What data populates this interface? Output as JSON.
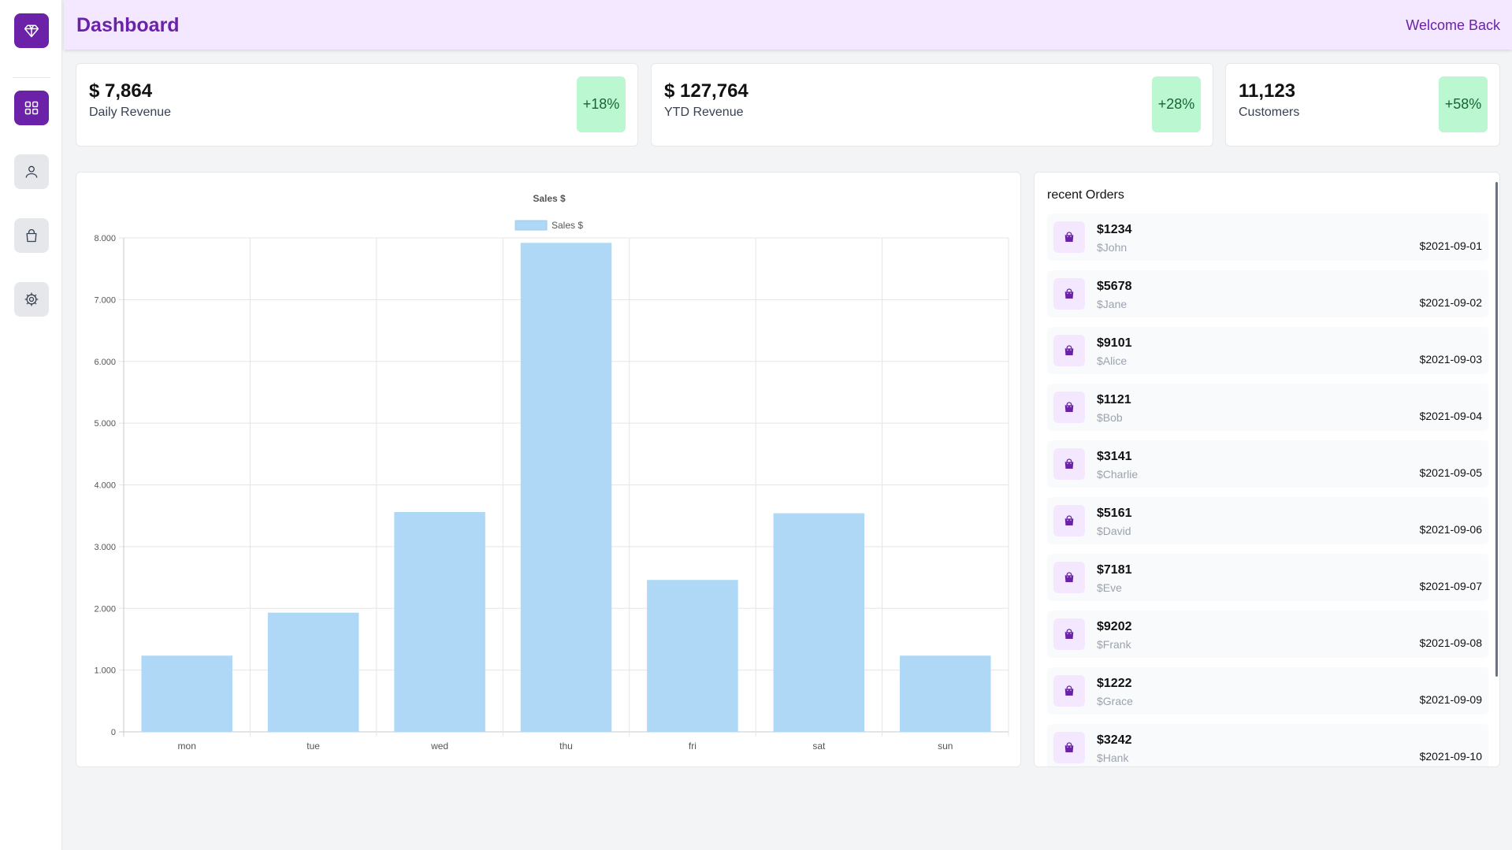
{
  "header": {
    "title": "Dashboard",
    "welcome": "Welcome Back"
  },
  "sidebar": {
    "items": [
      {
        "name": "diamond-icon"
      },
      {
        "name": "grid-icon"
      },
      {
        "name": "user-icon"
      },
      {
        "name": "bag-icon"
      },
      {
        "name": "gear-icon"
      }
    ]
  },
  "stats": [
    {
      "value": "$ 7,864",
      "label": "Daily Revenue",
      "change": "+18%"
    },
    {
      "value": "$ 127,764",
      "label": "YTD Revenue",
      "change": "+28%"
    },
    {
      "value": "11,123",
      "label": "Customers",
      "change": "+58%"
    }
  ],
  "colors": {
    "brand": "#6b21a8",
    "header_bg": "#f3e8ff",
    "badge_bg": "#bbf7d0",
    "bar": "#aed8f5"
  },
  "chart_data": {
    "type": "bar",
    "title": "Sales $",
    "categories": [
      "mon",
      "tue",
      "wed",
      "thu",
      "fri",
      "sat",
      "sun"
    ],
    "series": [
      {
        "name": "Sales $",
        "values": [
          1234,
          1930,
          3560,
          7920,
          2460,
          3540,
          1234
        ]
      }
    ],
    "ylim": [
      0,
      8000
    ],
    "yticks": [
      "0",
      "1.000",
      "2.000",
      "3.000",
      "4.000",
      "5.000",
      "6.000",
      "7.000",
      "8.000"
    ],
    "grid": true,
    "legend": "top-center"
  },
  "orders": {
    "title": "recent Orders",
    "items": [
      {
        "amount": "$1234",
        "name": "$John",
        "date": "$2021-09-01"
      },
      {
        "amount": "$5678",
        "name": "$Jane",
        "date": "$2021-09-02"
      },
      {
        "amount": "$9101",
        "name": "$Alice",
        "date": "$2021-09-03"
      },
      {
        "amount": "$1121",
        "name": "$Bob",
        "date": "$2021-09-04"
      },
      {
        "amount": "$3141",
        "name": "$Charlie",
        "date": "$2021-09-05"
      },
      {
        "amount": "$5161",
        "name": "$David",
        "date": "$2021-09-06"
      },
      {
        "amount": "$7181",
        "name": "$Eve",
        "date": "$2021-09-07"
      },
      {
        "amount": "$9202",
        "name": "$Frank",
        "date": "$2021-09-08"
      },
      {
        "amount": "$1222",
        "name": "$Grace",
        "date": "$2021-09-09"
      },
      {
        "amount": "$3242",
        "name": "$Hank",
        "date": "$2021-09-10"
      }
    ]
  }
}
